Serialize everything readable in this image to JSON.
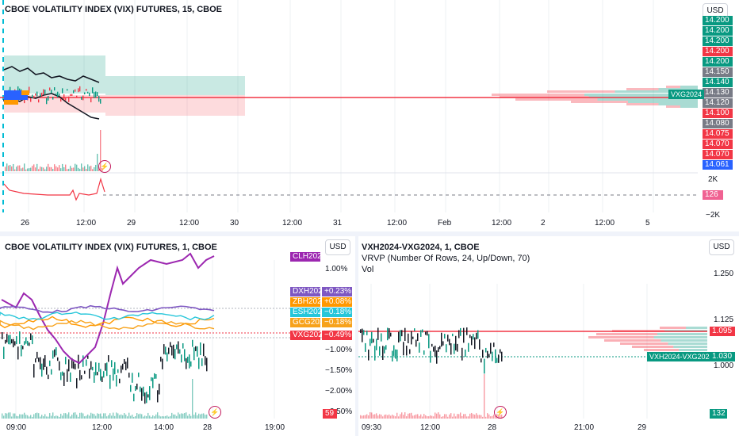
{
  "top": {
    "title": "CBOE VOLATILITY INDEX (VIX) FUTURES, 15, CBOE",
    "currency": "USD",
    "price_tags": [
      {
        "label": "14.200",
        "color": "#089981"
      },
      {
        "label": "14.200",
        "color": "#089981"
      },
      {
        "label": "14.200",
        "color": "#089981"
      },
      {
        "label": "14.200",
        "color": "#f23645"
      },
      {
        "label": "14.200",
        "color": "#089981"
      },
      {
        "label": "14.150",
        "color": "#787b86"
      },
      {
        "label": "14.140",
        "color": "#089981"
      },
      {
        "label": "14.130",
        "color": "#787b86"
      },
      {
        "label": "14.120",
        "color": "#787b86"
      },
      {
        "label": "14.100",
        "color": "#f23645"
      },
      {
        "label": "14.080",
        "color": "#787b86"
      },
      {
        "label": "14.075",
        "color": "#f23645"
      },
      {
        "label": "14.070",
        "color": "#f23645"
      },
      {
        "label": "14.070",
        "color": "#f23645"
      },
      {
        "label": "14.061",
        "color": "#2962ff"
      }
    ],
    "symbol_label": "VXG2024",
    "indicator_axis": {
      "top": "2K",
      "value": "126",
      "bottom": "−2K"
    },
    "time_ticks": [
      "26",
      "12:00",
      "29",
      "12:00",
      "30",
      "12:00",
      "31",
      "12:00",
      "Feb",
      "12:00",
      "2",
      "12:00",
      "5"
    ]
  },
  "bottom_left": {
    "title": "CBOE VOLATILITY INDEX (VIX) FUTURES, 1, CBOE",
    "currency": "USD",
    "axis_labels": [
      "1.00%",
      "−1.00%",
      "−1.50%",
      "−2.00%",
      "−2.50%"
    ],
    "legend": [
      {
        "symbol": "CLH2024",
        "change": "",
        "color": "#9c27b0"
      },
      {
        "symbol": "DXH2024",
        "change": "+0.23%",
        "color": "#7e57c2"
      },
      {
        "symbol": "ZBH2024",
        "change": "+0.08%",
        "color": "#ff9800"
      },
      {
        "symbol": "ESH2024",
        "change": "−0.18%",
        "color": "#26c6da"
      },
      {
        "symbol": "GCG2024",
        "change": "−0.18%",
        "color": "#f7a21b"
      },
      {
        "symbol": "VXG2024",
        "change": "−0.49%",
        "color": "#f23645"
      }
    ],
    "volume_tag": "59",
    "time_ticks": [
      "09:00",
      "12:00",
      "14:00",
      "28",
      "19:00"
    ]
  },
  "bottom_right": {
    "title": "VXH2024-VXG2024, 1, CBOE",
    "indicator1": "VRVP (Number Of Rows, 24, Up/Down, 70)",
    "indicator2": "Vol",
    "currency": "USD",
    "axis_labels": [
      "1.250",
      "1.125",
      "1.000"
    ],
    "price_tag": "1.095",
    "spread_tag": "1.030",
    "spread_label": "VXH2024-VXG2024",
    "volume_tag": "132",
    "time_ticks": [
      "09:30",
      "12:00",
      "28",
      "21:00",
      "29"
    ]
  },
  "chart_data": [
    {
      "type": "line",
      "title": "CBOE VOLATILITY INDEX (VIX) FUTURES, 15, CBOE",
      "x_ticks": [
        "26",
        "12:00",
        "29",
        "12:00",
        "30",
        "12:00",
        "31",
        "12:00",
        "Feb",
        "12:00",
        "2",
        "12:00",
        "5"
      ],
      "y_ticks": [
        "14.200",
        "14.150",
        "14.140",
        "14.130",
        "14.120",
        "14.100",
        "14.080",
        "14.075",
        "14.070",
        "14.061"
      ],
      "current_value": 14.14,
      "indicator_value": 126
    },
    {
      "type": "line",
      "title": "CBOE VOLATILITY INDEX (VIX) FUTURES, 1, CBOE",
      "x_ticks": [
        "09:00",
        "12:00",
        "14:00",
        "28",
        "19:00"
      ],
      "series": [
        {
          "name": "DXH2024",
          "last_change_pct": 0.23
        },
        {
          "name": "ZBH2024",
          "last_change_pct": 0.08
        },
        {
          "name": "ESH2024",
          "last_change_pct": -0.18
        },
        {
          "name": "GCG2024",
          "last_change_pct": -0.18
        },
        {
          "name": "VXG2024",
          "last_change_pct": -0.49
        }
      ],
      "y_ticks": [
        "1.00%",
        "−1.00%",
        "−1.50%",
        "−2.00%",
        "−2.50%"
      ],
      "volume_last": 59
    },
    {
      "type": "bar",
      "title": "VXH2024-VXG2024, 1, CBOE",
      "x_ticks": [
        "09:30",
        "12:00",
        "28",
        "21:00",
        "29"
      ],
      "y_ticks": [
        "1.250",
        "1.125",
        "1.000"
      ],
      "last_value": 1.03,
      "level": 1.095,
      "volume_last": 132
    }
  ]
}
